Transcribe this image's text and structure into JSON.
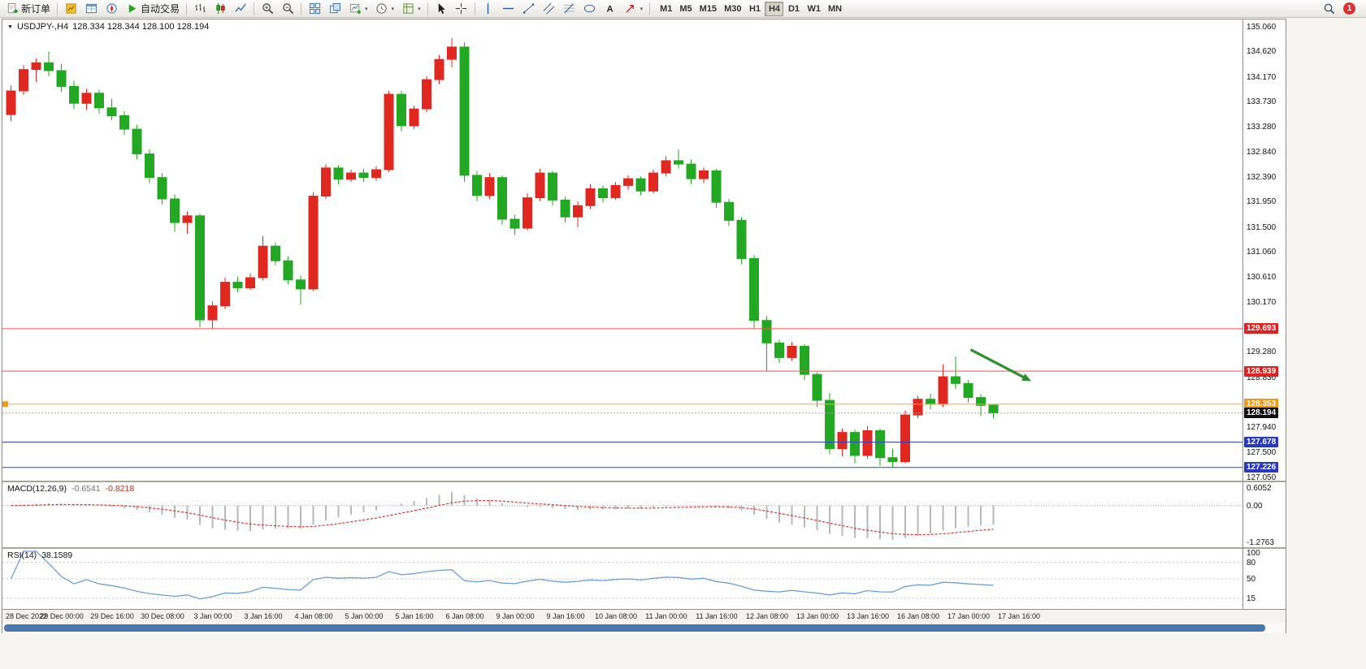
{
  "toolbar": {
    "new_order_label": "新订单",
    "auto_trading_label": "自动交易",
    "notification_count": "1",
    "timeframes": [
      "M1",
      "M5",
      "M15",
      "M30",
      "H1",
      "H4",
      "D1",
      "W1",
      "MN"
    ],
    "active_timeframe": "H4",
    "items": [
      {
        "name": "new-order-button",
        "icon": "doc-plus",
        "label_key": "new_order_label"
      },
      {
        "sep": true
      },
      {
        "name": "market-watch-button",
        "icon": "market-watch"
      },
      {
        "name": "data-window-button",
        "icon": "data-window"
      },
      {
        "name": "navigator-button",
        "icon": "navigator"
      },
      {
        "name": "auto-trading-button",
        "icon": "play",
        "label_key": "auto_trading_label"
      },
      {
        "sep": true
      },
      {
        "name": "bar-chart-button",
        "icon": "bars"
      },
      {
        "name": "candlestick-chart-button",
        "icon": "candles"
      },
      {
        "name": "line-chart-button",
        "icon": "line"
      },
      {
        "sep": true
      },
      {
        "name": "zoom-in-button",
        "icon": "zoom-in"
      },
      {
        "name": "zoom-out-button",
        "icon": "zoom-out"
      },
      {
        "sep": true
      },
      {
        "name": "tile-windows-button",
        "icon": "tile"
      },
      {
        "name": "cascade-windows-button",
        "icon": "cascade"
      },
      {
        "name": "new-chart-button",
        "icon": "chart-plus",
        "caret": true
      },
      {
        "name": "periodicity-button",
        "icon": "clock",
        "caret": true
      },
      {
        "name": "templates-button",
        "icon": "template",
        "caret": true
      },
      {
        "sep": true
      },
      {
        "name": "cursor-button",
        "icon": "cursor"
      },
      {
        "name": "crosshair-button",
        "icon": "crosshair"
      },
      {
        "sep": true
      },
      {
        "name": "vertical-line-button",
        "icon": "vline"
      },
      {
        "name": "horizontal-line-button",
        "icon": "hline"
      },
      {
        "name": "trendline-button",
        "icon": "trend"
      },
      {
        "name": "equidistant-channel-button",
        "icon": "channel"
      },
      {
        "name": "fibonacci-button",
        "icon": "fibo"
      },
      {
        "name": "shapes-button",
        "icon": "shapes"
      },
      {
        "name": "text-label-button",
        "icon": "text"
      },
      {
        "name": "arrows-button",
        "icon": "arrow-tool",
        "caret": true
      },
      {
        "sep": true
      }
    ]
  },
  "chart": {
    "symbol_period": "USDJPY-,H4",
    "ohlc_text": "128.334 128.344 128.100 128.194"
  },
  "chart_data": {
    "type": "candlestick",
    "symbol": "USDJPY",
    "period": "H4",
    "up_color": "#e02820",
    "down_color": "#22a822",
    "last_ohlc": {
      "open": 128.334,
      "high": 128.344,
      "low": 128.1,
      "close": 128.194
    },
    "price_axis_ticks": [
      135.06,
      134.62,
      134.17,
      133.73,
      133.28,
      132.84,
      132.39,
      131.95,
      131.5,
      131.06,
      130.61,
      130.17,
      129.28,
      128.83,
      127.94,
      127.5,
      127.05
    ],
    "horizontal_levels": [
      {
        "price": 129.693,
        "label": "129.693",
        "line_color": "#ff4a4a",
        "badge_color": "#e02020",
        "style": "solid"
      },
      {
        "price": 128.939,
        "label": "128.939",
        "line_color": "#ff4a4a",
        "badge_color": "#e02020",
        "style": "solid"
      },
      {
        "price": 128.353,
        "label": "128.353",
        "line_color": "#ffa520",
        "badge_color": "#f09a18",
        "style": "solid"
      },
      {
        "price": 128.194,
        "label": "128.194",
        "line_color": "#a8a8a8",
        "badge_color": "#101010",
        "style": "dotted",
        "current": true
      },
      {
        "price": 127.678,
        "label": "127.678",
        "line_color": "#3040c8",
        "badge_color": "#2838c0",
        "style": "solid"
      },
      {
        "price": 127.226,
        "label": "127.226",
        "line_color": "#3040c8",
        "badge_color": "#2838c0",
        "style": "solid"
      }
    ],
    "time_labels": [
      "28 Dec 2022",
      "29 Dec 00:00",
      "29 Dec 16:00",
      "30 Dec 08:00",
      "3 Jan 00:00",
      "3 Jan 16:00",
      "4 Jan 08:00",
      "5 Jan 00:00",
      "5 Jan 16:00",
      "6 Jan 08:00",
      "9 Jan 00:00",
      "9 Jan 16:00",
      "10 Jan 08:00",
      "11 Jan 00:00",
      "11 Jan 16:00",
      "12 Jan 08:00",
      "13 Jan 00:00",
      "13 Jan 16:00",
      "16 Jan 08:00",
      "17 Jan 00:00",
      "17 Jan 16:00"
    ],
    "candles_ohlc": [
      [
        133.5,
        134.02,
        133.38,
        133.92
      ],
      [
        133.92,
        134.38,
        133.85,
        134.3
      ],
      [
        134.3,
        134.5,
        134.08,
        134.42
      ],
      [
        134.42,
        134.62,
        134.18,
        134.28
      ],
      [
        134.28,
        134.4,
        133.9,
        134.0
      ],
      [
        134.0,
        134.1,
        133.6,
        133.7
      ],
      [
        133.7,
        133.96,
        133.58,
        133.88
      ],
      [
        133.88,
        133.94,
        133.52,
        133.62
      ],
      [
        133.62,
        133.78,
        133.4,
        133.48
      ],
      [
        133.48,
        133.56,
        133.14,
        133.24
      ],
      [
        133.24,
        133.32,
        132.7,
        132.8
      ],
      [
        132.8,
        132.88,
        132.28,
        132.38
      ],
      [
        132.38,
        132.46,
        131.9,
        132.0
      ],
      [
        132.0,
        132.08,
        131.42,
        131.58
      ],
      [
        131.58,
        131.78,
        131.38,
        131.7
      ],
      [
        131.7,
        131.74,
        129.72,
        129.85
      ],
      [
        129.85,
        130.18,
        129.7,
        130.1
      ],
      [
        130.1,
        130.6,
        130.04,
        130.52
      ],
      [
        130.52,
        130.62,
        130.34,
        130.42
      ],
      [
        130.42,
        130.68,
        130.38,
        130.6
      ],
      [
        130.6,
        131.34,
        130.55,
        131.16
      ],
      [
        131.16,
        131.22,
        130.82,
        130.9
      ],
      [
        130.9,
        130.98,
        130.48,
        130.56
      ],
      [
        130.56,
        130.64,
        130.12,
        130.4
      ],
      [
        130.4,
        132.12,
        130.36,
        132.05
      ],
      [
        132.05,
        132.62,
        132.0,
        132.55
      ],
      [
        132.55,
        132.6,
        132.26,
        132.35
      ],
      [
        132.35,
        132.52,
        132.3,
        132.46
      ],
      [
        132.46,
        132.54,
        132.3,
        132.38
      ],
      [
        132.38,
        132.58,
        132.32,
        132.52
      ],
      [
        132.52,
        133.92,
        132.48,
        133.86
      ],
      [
        133.86,
        133.92,
        133.2,
        133.3
      ],
      [
        133.3,
        133.66,
        133.24,
        133.6
      ],
      [
        133.6,
        134.18,
        133.54,
        134.12
      ],
      [
        134.12,
        134.56,
        134.04,
        134.48
      ],
      [
        134.48,
        134.86,
        134.34,
        134.7
      ],
      [
        134.7,
        134.78,
        132.3,
        132.42
      ],
      [
        132.42,
        132.5,
        131.96,
        132.06
      ],
      [
        132.06,
        132.46,
        132.0,
        132.38
      ],
      [
        132.38,
        132.42,
        131.54,
        131.64
      ],
      [
        131.64,
        131.72,
        131.36,
        131.48
      ],
      [
        131.48,
        132.1,
        131.44,
        132.02
      ],
      [
        132.02,
        132.54,
        131.96,
        132.46
      ],
      [
        132.46,
        132.5,
        131.88,
        131.98
      ],
      [
        131.98,
        132.04,
        131.58,
        131.68
      ],
      [
        131.68,
        131.96,
        131.5,
        131.88
      ],
      [
        131.88,
        132.26,
        131.82,
        132.18
      ],
      [
        132.18,
        132.24,
        131.94,
        132.02
      ],
      [
        132.02,
        132.3,
        131.98,
        132.24
      ],
      [
        132.24,
        132.42,
        132.16,
        132.36
      ],
      [
        132.36,
        132.4,
        132.06,
        132.14
      ],
      [
        132.14,
        132.52,
        132.1,
        132.46
      ],
      [
        132.46,
        132.76,
        132.4,
        132.68
      ],
      [
        132.68,
        132.88,
        132.54,
        132.62
      ],
      [
        132.62,
        132.7,
        132.26,
        132.36
      ],
      [
        132.36,
        132.56,
        132.28,
        132.5
      ],
      [
        132.5,
        132.54,
        131.84,
        131.94
      ],
      [
        131.94,
        132.0,
        131.52,
        131.62
      ],
      [
        131.62,
        131.68,
        130.84,
        130.94
      ],
      [
        130.94,
        131.0,
        129.7,
        129.84
      ],
      [
        129.84,
        129.92,
        128.94,
        129.44
      ],
      [
        129.44,
        129.5,
        129.08,
        129.18
      ],
      [
        129.18,
        129.46,
        129.12,
        129.38
      ],
      [
        129.38,
        129.42,
        128.78,
        128.88
      ],
      [
        128.88,
        128.92,
        128.3,
        128.42
      ],
      [
        128.42,
        128.55,
        127.46,
        127.56
      ],
      [
        127.56,
        127.92,
        127.42,
        127.85
      ],
      [
        127.85,
        127.9,
        127.3,
        127.44
      ],
      [
        127.44,
        127.96,
        127.38,
        127.88
      ],
      [
        127.88,
        127.92,
        127.25,
        127.4
      ],
      [
        127.4,
        127.56,
        127.22,
        127.33
      ],
      [
        127.33,
        128.24,
        127.3,
        128.16
      ],
      [
        128.16,
        128.5,
        128.1,
        128.44
      ],
      [
        128.44,
        128.54,
        128.26,
        128.35
      ],
      [
        128.35,
        129.06,
        128.3,
        128.84
      ],
      [
        128.84,
        129.2,
        128.62,
        128.72
      ],
      [
        128.72,
        128.78,
        128.38,
        128.47
      ],
      [
        128.47,
        128.53,
        128.14,
        128.33
      ],
      [
        128.334,
        128.344,
        128.1,
        128.194
      ]
    ],
    "arrow_annotation": {
      "from_candle": 76.2,
      "from_price": 129.32,
      "to_candle": 81.0,
      "to_price": 128.76,
      "color": "#2f8f2f"
    },
    "indicators": {
      "macd": {
        "name": "MACD(12,26,9)",
        "value_main": "-0.6541",
        "value_signal": "-0.8218",
        "axis_top": "0.6052",
        "axis_zero": "0.00",
        "axis_bottom": "-1.2763",
        "fast": 12,
        "slow": 26,
        "smoothing": 9,
        "histogram_color": "#b8b8b8",
        "signal_color": "#e03030"
      },
      "rsi": {
        "name": "RSI(14)",
        "value": "38.1589",
        "period": 14,
        "levels": [
          80,
          50,
          15
        ],
        "axis_labels": [
          100,
          80,
          50,
          15
        ],
        "line_color": "#6a9fd8"
      }
    }
  }
}
